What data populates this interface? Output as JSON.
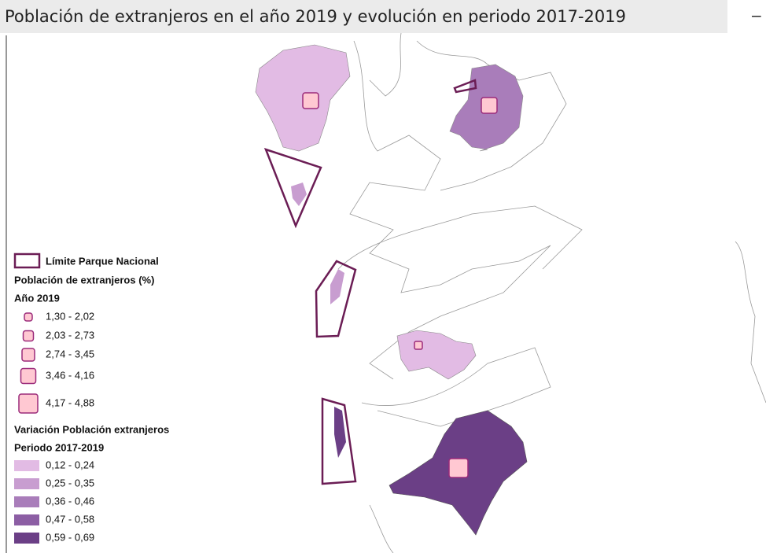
{
  "title": "Población de extranjeros en el año 2019 y evolución en periodo 2017-2019",
  "minimize": "–",
  "legend": {
    "park": "Límite Parque Nacional",
    "heading": "Población de extranjeros (%)",
    "year_title": "Año 2019",
    "sizes": [
      "1,30 - 2,02",
      "2,03 - 2,73",
      "2,74 - 3,45",
      "3,46 - 4,16",
      "4,17 - 4,88"
    ],
    "variation_title": "Variación Población extranjeros",
    "period_title": "Periodo 2017-2019",
    "classes": [
      {
        "label": "0,12 - 0,24",
        "color": "#e2bbe4"
      },
      {
        "label": "0,25 - 0,35",
        "color": "#c89dd0"
      },
      {
        "label": "0,36 - 0,46",
        "color": "#a97dba"
      },
      {
        "label": "0,47 - 0,58",
        "color": "#8c5ea4"
      },
      {
        "label": "0,59 - 0,69",
        "color": "#6b3f86"
      }
    ]
  }
}
